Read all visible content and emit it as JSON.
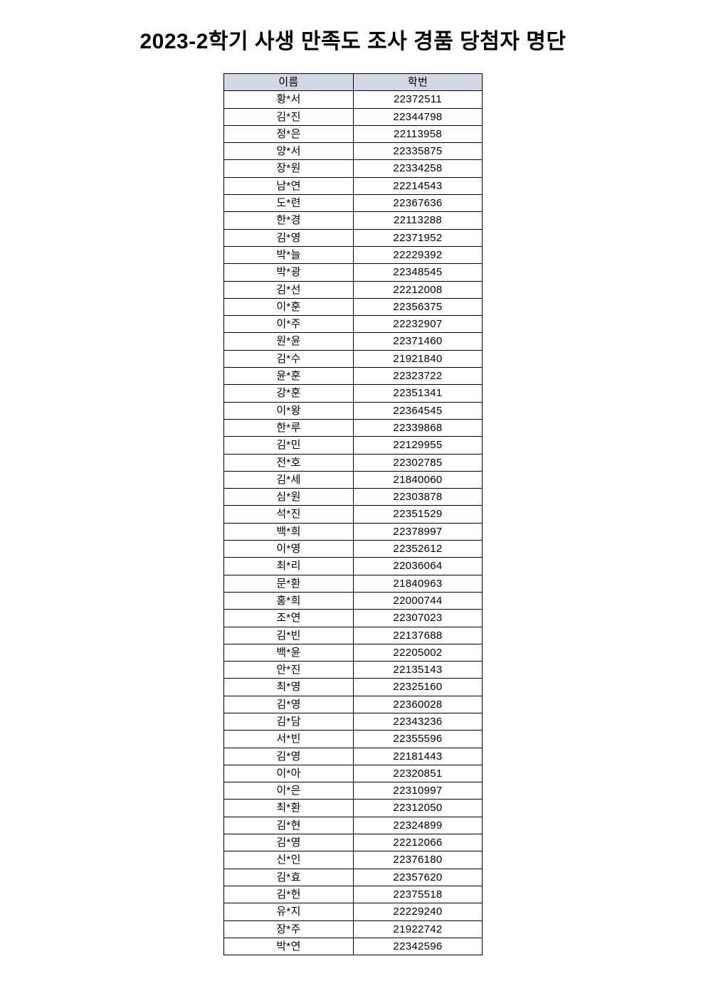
{
  "page": {
    "title": "2023-2학기 사생 만족도 조사 경품 당첨자 명단"
  },
  "table": {
    "columns": [
      "이름",
      "학번"
    ],
    "header_bg": "#d5d5e8",
    "rows": [
      {
        "name": "황*서",
        "student_id": "22372511"
      },
      {
        "name": "김*진",
        "student_id": "22344798"
      },
      {
        "name": "정*은",
        "student_id": "22113958"
      },
      {
        "name": "양*서",
        "student_id": "22335875"
      },
      {
        "name": "장*원",
        "student_id": "22334258"
      },
      {
        "name": "남*연",
        "student_id": "22214543"
      },
      {
        "name": "도*련",
        "student_id": "22367636"
      },
      {
        "name": "한*경",
        "student_id": "22113288"
      },
      {
        "name": "김*영",
        "student_id": "22371952"
      },
      {
        "name": "박*늘",
        "student_id": "22229392"
      },
      {
        "name": "박*광",
        "student_id": "22348545"
      },
      {
        "name": "김*선",
        "student_id": "22212008"
      },
      {
        "name": "이*훈",
        "student_id": "22356375"
      },
      {
        "name": "이*주",
        "student_id": "22232907"
      },
      {
        "name": "원*윤",
        "student_id": "22371460"
      },
      {
        "name": "김*수",
        "student_id": "21921840"
      },
      {
        "name": "윤*훈",
        "student_id": "22323722"
      },
      {
        "name": "강*훈",
        "student_id": "22351341"
      },
      {
        "name": "이*왕",
        "student_id": "22364545"
      },
      {
        "name": "한*루",
        "student_id": "22339868"
      },
      {
        "name": "김*민",
        "student_id": "22129955"
      },
      {
        "name": "전*호",
        "student_id": "22302785"
      },
      {
        "name": "김*세",
        "student_id": "21840060"
      },
      {
        "name": "심*원",
        "student_id": "22303878"
      },
      {
        "name": "석*진",
        "student_id": "22351529"
      },
      {
        "name": "백*희",
        "student_id": "22378997"
      },
      {
        "name": "이*영",
        "student_id": "22352612"
      },
      {
        "name": "최*리",
        "student_id": "22036064"
      },
      {
        "name": "문*환",
        "student_id": "21840963"
      },
      {
        "name": "홍*희",
        "student_id": "22000744"
      },
      {
        "name": "조*연",
        "student_id": "22307023"
      },
      {
        "name": "김*빈",
        "student_id": "22137688"
      },
      {
        "name": "백*윤",
        "student_id": "22205002"
      },
      {
        "name": "안*진",
        "student_id": "22135143"
      },
      {
        "name": "최*영",
        "student_id": "22325160"
      },
      {
        "name": "김*영",
        "student_id": "22360028"
      },
      {
        "name": "김*담",
        "student_id": "22343236"
      },
      {
        "name": "서*빈",
        "student_id": "22355596"
      },
      {
        "name": "김*영",
        "student_id": "22181443"
      },
      {
        "name": "이*아",
        "student_id": "22320851"
      },
      {
        "name": "이*은",
        "student_id": "22310997"
      },
      {
        "name": "최*환",
        "student_id": "22312050"
      },
      {
        "name": "김*현",
        "student_id": "22324899"
      },
      {
        "name": "김*영",
        "student_id": "22212066"
      },
      {
        "name": "신*인",
        "student_id": "22376180"
      },
      {
        "name": "김*효",
        "student_id": "22357620"
      },
      {
        "name": "김*헌",
        "student_id": "22375518"
      },
      {
        "name": "유*지",
        "student_id": "22229240"
      },
      {
        "name": "장*주",
        "student_id": "21922742"
      },
      {
        "name": "박*연",
        "student_id": "22342596"
      }
    ]
  }
}
